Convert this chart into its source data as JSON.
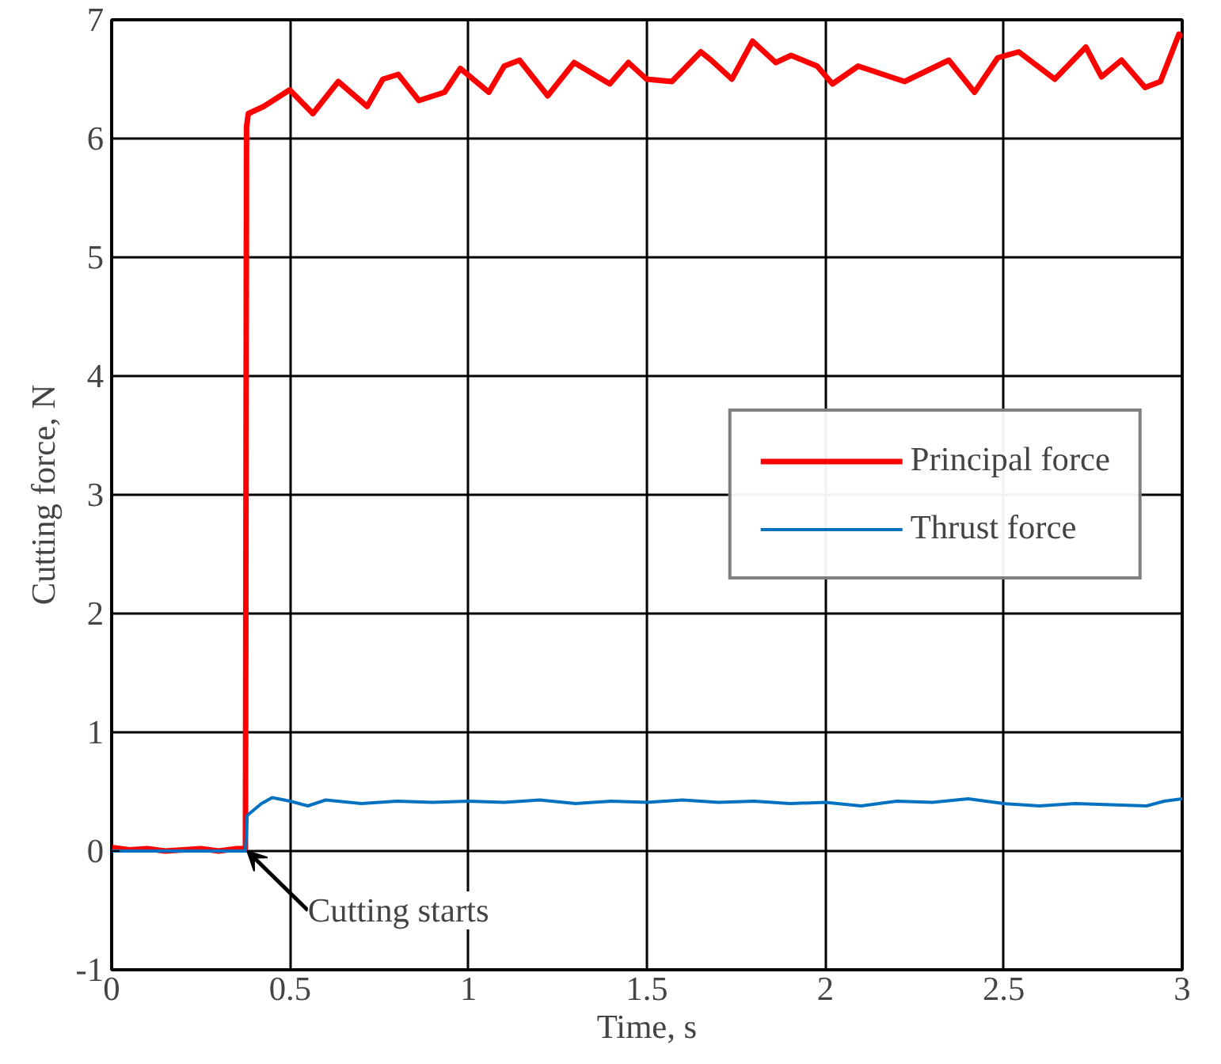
{
  "chart_data": {
    "type": "line",
    "xlabel": "Time, s",
    "ylabel": "Cutting force, N",
    "xlim": [
      0,
      3
    ],
    "ylim": [
      -1,
      7
    ],
    "xticks": [
      0,
      0.5,
      1,
      1.5,
      2,
      2.5,
      3
    ],
    "yticks": [
      -1,
      0,
      1,
      2,
      3,
      4,
      5,
      6,
      7
    ],
    "grid": true,
    "legend": "right",
    "line_style": "solid",
    "marker": "none",
    "annotations": [
      {
        "text": "Cutting starts",
        "x": 0.38,
        "y": 0
      }
    ],
    "series": [
      {
        "name": "Principal force",
        "color": "#ff0000",
        "x": [
          0,
          0.05,
          0.1,
          0.15,
          0.2,
          0.25,
          0.3,
          0.35,
          0.375,
          0.378,
          0.383,
          0.426,
          0.499,
          0.564,
          0.635,
          0.716,
          0.76,
          0.803,
          0.861,
          0.933,
          0.977,
          1.057,
          1.1,
          1.143,
          1.222,
          1.296,
          1.396,
          1.448,
          1.499,
          1.57,
          1.651,
          1.68,
          1.738,
          1.796,
          1.861,
          1.904,
          1.977,
          2.02,
          2.092,
          2.222,
          2.346,
          2.418,
          2.483,
          2.542,
          2.643,
          2.73,
          2.774,
          2.83,
          2.896,
          2.939,
          2.991,
          3
        ],
        "values": [
          0.03,
          0.01,
          0.02,
          0.0,
          0.01,
          0.02,
          0.0,
          0.02,
          0.02,
          6.1,
          6.21,
          6.27,
          6.41,
          6.21,
          6.48,
          6.27,
          6.5,
          6.54,
          6.32,
          6.39,
          6.59,
          6.39,
          6.61,
          6.66,
          6.36,
          6.64,
          6.46,
          6.64,
          6.5,
          6.48,
          6.73,
          6.66,
          6.5,
          6.82,
          6.64,
          6.7,
          6.61,
          6.46,
          6.61,
          6.48,
          6.66,
          6.39,
          6.68,
          6.73,
          6.5,
          6.77,
          6.52,
          6.66,
          6.43,
          6.48,
          6.88,
          6.85
        ]
      },
      {
        "name": "Thrust force",
        "color": "#0070c0",
        "x": [
          0,
          0.1,
          0.2,
          0.3,
          0.375,
          0.38,
          0.42,
          0.45,
          0.5,
          0.55,
          0.6,
          0.7,
          0.8,
          0.9,
          1.0,
          1.1,
          1.2,
          1.3,
          1.4,
          1.5,
          1.6,
          1.7,
          1.8,
          1.9,
          2.0,
          2.1,
          2.2,
          2.3,
          2.4,
          2.5,
          2.6,
          2.7,
          2.8,
          2.9,
          2.95,
          3
        ],
        "values": [
          0.0,
          0.0,
          0.0,
          0.0,
          0.0,
          0.3,
          0.4,
          0.45,
          0.42,
          0.38,
          0.43,
          0.4,
          0.42,
          0.41,
          0.42,
          0.41,
          0.43,
          0.4,
          0.42,
          0.41,
          0.43,
          0.41,
          0.42,
          0.4,
          0.41,
          0.38,
          0.42,
          0.41,
          0.44,
          0.4,
          0.38,
          0.4,
          0.39,
          0.38,
          0.42,
          0.44
        ]
      }
    ]
  }
}
